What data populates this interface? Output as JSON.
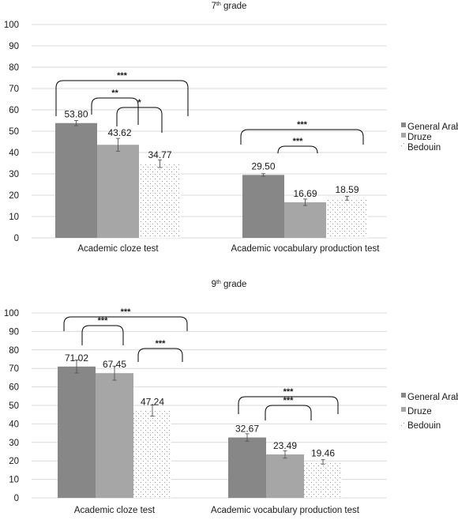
{
  "colors": {
    "General Arab": "#878787",
    "Druze": "#a6a6a6",
    "Bedouin": "dots"
  },
  "chart_data": [
    {
      "type": "bar",
      "title": "7",
      "title_sup": "th",
      "title_rest": " grade",
      "categories": [
        "Academic cloze test",
        "Academic vocabulary production test"
      ],
      "series": [
        {
          "name": "General Arab",
          "values": [
            53.8,
            29.5
          ],
          "labels": [
            "53.80",
            "29.50"
          ],
          "error": [
            1.2,
            0.6
          ]
        },
        {
          "name": "Druze",
          "values": [
            43.62,
            16.69
          ],
          "labels": [
            "43.62",
            "16.69"
          ],
          "error": [
            3.0,
            1.5
          ]
        },
        {
          "name": "Bedouin",
          "values": [
            34.77,
            18.59
          ],
          "labels": [
            "34.77",
            "18.59"
          ],
          "error": [
            1.8,
            0.9
          ]
        }
      ],
      "ylim": [
        0,
        100
      ],
      "yticks": [
        0,
        10,
        20,
        30,
        40,
        50,
        60,
        70,
        80,
        90,
        100
      ],
      "grid": true,
      "legend": "right",
      "significance": [
        {
          "category": 0,
          "from": 0,
          "to": 2,
          "label": "***"
        },
        {
          "category": 0,
          "from": 0,
          "to": 1,
          "label": "**"
        },
        {
          "category": 0,
          "from": 1,
          "to": 2,
          "label": "*"
        },
        {
          "category": 1,
          "from": 0,
          "to": 2,
          "label": "***"
        },
        {
          "category": 1,
          "from": 1,
          "to": 2,
          "label": "***"
        }
      ]
    },
    {
      "type": "bar",
      "title": "9",
      "title_sup": "th",
      "title_rest": " grade",
      "categories": [
        "Academic cloze test",
        "Academic vocabulary production test"
      ],
      "series": [
        {
          "name": "General Arab",
          "values": [
            71.02,
            32.67
          ],
          "labels": [
            "71.02",
            "32.67"
          ],
          "error": [
            3.5,
            2.0
          ]
        },
        {
          "name": "Druze",
          "values": [
            67.45,
            23.49
          ],
          "labels": [
            "67.45",
            "23.49"
          ],
          "error": [
            3.8,
            2.0
          ]
        },
        {
          "name": "Bedouin",
          "values": [
            47.24,
            19.46
          ],
          "labels": [
            "47.24",
            "19.46"
          ],
          "error": [
            3.0,
            1.2
          ]
        }
      ],
      "ylim": [
        0,
        100
      ],
      "yticks": [
        0,
        10,
        20,
        30,
        40,
        50,
        60,
        70,
        80,
        90,
        100
      ],
      "grid": true,
      "legend": "right",
      "significance": [
        {
          "category": 0,
          "from": 0,
          "to": 2,
          "label": "***"
        },
        {
          "category": 0,
          "from": 0,
          "to": 1,
          "label": "***"
        },
        {
          "category": 0,
          "from": 1,
          "to": 2,
          "label": "***"
        },
        {
          "category": 1,
          "from": 0,
          "to": 2,
          "label": "***"
        },
        {
          "category": 1,
          "from": 1,
          "to": 2,
          "label": "***"
        }
      ]
    }
  ]
}
